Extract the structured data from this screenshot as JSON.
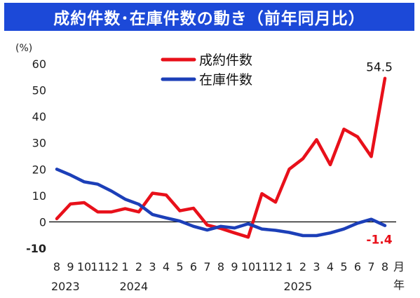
{
  "chart_data": {
    "type": "line",
    "title": "成約件数･在庫件数の動き（前年同月比）",
    "ylabel": "(%)",
    "ylim": [
      -10,
      60
    ],
    "yticks": [
      -10,
      0,
      10,
      20,
      30,
      40,
      50,
      60
    ],
    "ytick_labels": [
      "-10",
      "0",
      "10",
      "20",
      "30",
      "40",
      "50",
      "60"
    ],
    "x_month_labels": [
      "8",
      "9",
      "10",
      "11",
      "12",
      "1",
      "2",
      "3",
      "4",
      "5",
      "6",
      "7",
      "8",
      "9",
      "10",
      "11",
      "12",
      "1",
      "2",
      "3",
      "4",
      "5",
      "6",
      "7",
      "8"
    ],
    "x_unit_label": "月",
    "year_labels": [
      {
        "label": "2023",
        "index": 0
      },
      {
        "label": "2024",
        "index": 5
      },
      {
        "label": "2025",
        "index": 17
      }
    ],
    "x_last_suffix": "年",
    "grid": false,
    "legend_position": "top-center",
    "series": [
      {
        "name": "成約件数",
        "color": "#e8101a",
        "values": [
          1.2,
          6.8,
          7.3,
          3.8,
          3.8,
          5.0,
          3.8,
          10.9,
          10.2,
          4.2,
          5.2,
          -1.2,
          -2.5,
          -4.2,
          -5.8,
          10.7,
          7.5,
          20.0,
          24.0,
          31.2,
          21.7,
          35.2,
          32.3,
          24.8,
          54.5
        ]
      },
      {
        "name": "在庫件数",
        "color": "#1c3fb8",
        "values": [
          20.0,
          17.8,
          15.2,
          14.3,
          11.7,
          8.6,
          6.7,
          2.8,
          1.5,
          0.3,
          -1.7,
          -3.1,
          -1.7,
          -2.3,
          -0.7,
          -2.7,
          -3.2,
          -4.0,
          -5.2,
          -5.2,
          -4.2,
          -2.7,
          -0.5,
          1.0,
          -1.4
        ]
      }
    ],
    "annotations": [
      {
        "text": "54.5",
        "series": 0,
        "index": 24,
        "color": "#111111"
      },
      {
        "text": "-1.4",
        "series": 1,
        "index": 24,
        "color": "#e8101a"
      }
    ]
  }
}
